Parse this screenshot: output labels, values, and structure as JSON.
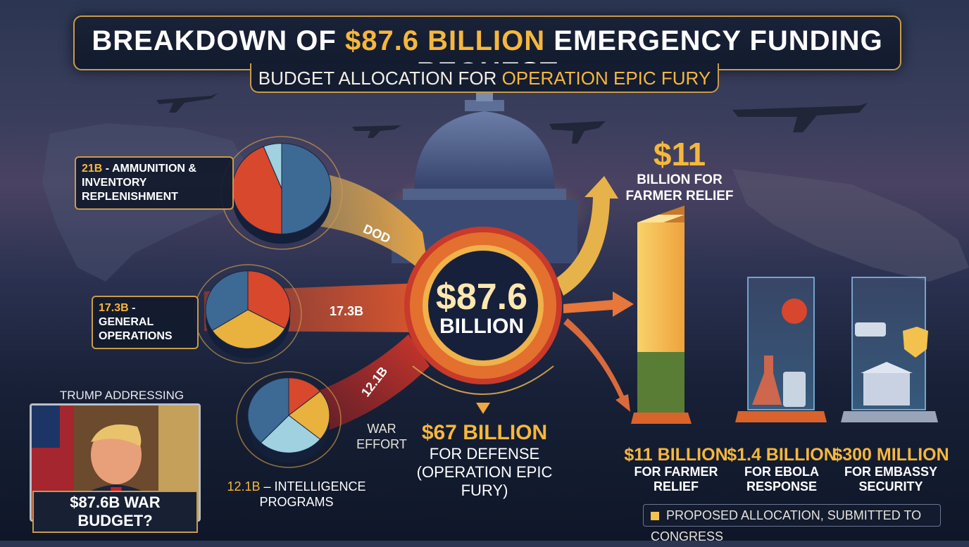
{
  "header": {
    "title_pre": "BREAKDOWN OF ",
    "title_highlight": "$87.6 BILLION",
    "title_post": " EMERGENCY FUNDING REQUEST",
    "subtitle_pre": "BUDGET ALLOCATION FOR ",
    "subtitle_highlight": "OPERATION EPIC FURY"
  },
  "chart_data": {
    "type": "pie",
    "total_value": "$87.6",
    "total_unit": "BILLION",
    "defense": {
      "value": "$67 BILLION",
      "label": "FOR DEFENSE (OPERATION EPIC FURY)",
      "amount_billion": 67
    },
    "defense_pies": [
      {
        "label_value": "21B",
        "label_text": " - AMMUNITION & INVENTORY REPLENISHMENT",
        "amount_billion": 21,
        "flow_label": "DOD",
        "slices": [
          {
            "fraction": 0.5,
            "color": "#3c6a94"
          },
          {
            "fraction": 0.44,
            "color": "#d7482c"
          },
          {
            "fraction": 0.06,
            "color": "#9fd1e0"
          }
        ]
      },
      {
        "label_value": "17.3B",
        "label_text": " - GENERAL OPERATIONS",
        "amount_billion": 17.3,
        "flow_label": "17.3B",
        "slices": [
          {
            "fraction": 0.33,
            "color": "#d7482c"
          },
          {
            "fraction": 0.33,
            "color": "#e9b13d"
          },
          {
            "fraction": 0.34,
            "color": "#3c6a94"
          }
        ]
      },
      {
        "label_value": "12.1B",
        "label_text": " – INTELLIGENCE PROGRAMS",
        "amount_billion": 12.1,
        "flow_label": "12.1B",
        "slices": [
          {
            "fraction": 0.14,
            "color": "#d7482c"
          },
          {
            "fraction": 0.22,
            "color": "#e9b13d"
          },
          {
            "fraction": 0.26,
            "color": "#9fd1e0"
          },
          {
            "fraction": 0.38,
            "color": "#3c6a94"
          }
        ]
      }
    ],
    "war_effort_label": "WAR EFFORT",
    "other_allocations": [
      {
        "value": "$11 BILLION",
        "label": "FOR FARMER RELIEF",
        "amount_billion": 11,
        "color": "#f2c14e"
      },
      {
        "value": "$1.4 BILLION",
        "label": "FOR EBOLA RESPONSE",
        "amount_billion": 1.4,
        "color": "#7ec8e8"
      },
      {
        "value": "$300 MILLION",
        "label": "FOR EMBASSY SECURITY",
        "amount_billion": 0.3,
        "color": "#aeb6c8"
      }
    ],
    "farmer_callout": {
      "value": "$11",
      "label": "BILLION FOR FARMER RELIEF"
    },
    "legend": [
      {
        "label": "PROPOSED ALLOCATION, SUBMITTED TO CONGRESS",
        "color": "#f2c14e"
      }
    ]
  },
  "inset": {
    "caption": "TRUMP ADDRESSING (ARCHIVE)",
    "banner": "$87.6B WAR BUDGET?"
  }
}
